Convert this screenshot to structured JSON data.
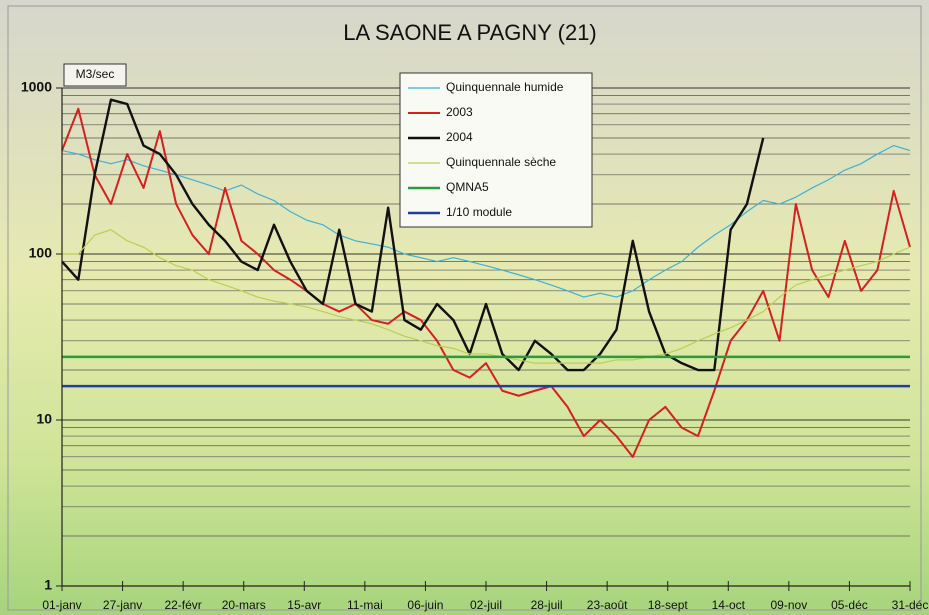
{
  "chart_data": {
    "type": "line",
    "title": "LA SAONE A PAGNY (21)",
    "y_label": "M3/sec",
    "log_y": true,
    "grid": true,
    "legend": "top-center",
    "x": [
      0,
      7,
      14,
      21,
      28,
      35,
      42,
      49,
      56,
      63,
      70,
      77,
      84,
      91,
      98,
      105,
      112,
      119,
      126,
      133,
      140,
      147,
      154,
      161,
      168,
      175,
      182,
      189,
      196,
      203,
      210,
      217,
      224,
      231,
      238,
      245,
      252,
      259,
      266,
      273,
      280,
      287,
      294,
      301,
      308,
      315,
      322,
      329,
      336,
      343,
      350,
      357,
      364
    ],
    "xlim": [
      0,
      364
    ],
    "xticks": [
      {
        "value": 0,
        "label": "01-janv"
      },
      {
        "value": 26,
        "label": "27-janv"
      },
      {
        "value": 52,
        "label": "22-févr"
      },
      {
        "value": 78,
        "label": "20-mars"
      },
      {
        "value": 104,
        "label": "15-avr"
      },
      {
        "value": 130,
        "label": "11-mai"
      },
      {
        "value": 156,
        "label": "06-juin"
      },
      {
        "value": 182,
        "label": "02-juil"
      },
      {
        "value": 208,
        "label": "28-juil"
      },
      {
        "value": 234,
        "label": "23-août"
      },
      {
        "value": 260,
        "label": "18-sept"
      },
      {
        "value": 286,
        "label": "14-oct"
      },
      {
        "value": 312,
        "label": "09-nov"
      },
      {
        "value": 338,
        "label": "05-déc"
      },
      {
        "value": 364,
        "label": "31-déc"
      }
    ],
    "ylim": [
      1,
      1000
    ],
    "yticks": [
      1,
      10,
      100,
      1000
    ],
    "y_minor_ticks": [
      2,
      3,
      4,
      5,
      6,
      7,
      8,
      9,
      20,
      30,
      40,
      50,
      60,
      70,
      80,
      90,
      200,
      300,
      400,
      500,
      600,
      700,
      800,
      900
    ],
    "series": [
      {
        "name": "Quinquennale humide",
        "color": "#3fb0d8",
        "width": 1.2,
        "values": [
          420,
          400,
          370,
          350,
          370,
          340,
          320,
          300,
          280,
          260,
          240,
          260,
          230,
          210,
          180,
          160,
          150,
          130,
          120,
          115,
          110,
          100,
          95,
          90,
          95,
          90,
          85,
          80,
          75,
          70,
          65,
          60,
          55,
          58,
          55,
          60,
          70,
          80,
          90,
          110,
          130,
          150,
          180,
          210,
          200,
          220,
          250,
          280,
          320,
          350,
          400,
          450,
          420
        ]
      },
      {
        "name": "2003",
        "color": "#d42020",
        "width": 2,
        "values": [
          420,
          750,
          300,
          200,
          400,
          250,
          550,
          200,
          130,
          100,
          250,
          120,
          100,
          80,
          70,
          60,
          50,
          45,
          50,
          40,
          38,
          45,
          40,
          30,
          20,
          18,
          22,
          15,
          14,
          15,
          16,
          12,
          8,
          10,
          8,
          6,
          10,
          12,
          9,
          8,
          15,
          30,
          40,
          60,
          30,
          200,
          80,
          55,
          120,
          60,
          80,
          240,
          110
        ]
      },
      {
        "name": "2004",
        "color": "#111111",
        "width": 2.4,
        "values": [
          90,
          70,
          300,
          850,
          800,
          450,
          400,
          300,
          200,
          150,
          120,
          90,
          80,
          150,
          90,
          60,
          50,
          140,
          50,
          45,
          190,
          40,
          35,
          50,
          40,
          25,
          50,
          25,
          20,
          30,
          25,
          20,
          20,
          25,
          35,
          120,
          45,
          25,
          22,
          20,
          20,
          140,
          200,
          500,
          null,
          null,
          null,
          null,
          null,
          null,
          null,
          null,
          null
        ]
      },
      {
        "name": "Quinquennale sèche",
        "color": "#b8d050",
        "width": 1.2,
        "values": [
          100,
          100,
          130,
          140,
          120,
          110,
          95,
          85,
          80,
          70,
          65,
          60,
          55,
          52,
          50,
          48,
          45,
          42,
          40,
          38,
          35,
          32,
          30,
          28,
          27,
          25,
          25,
          24,
          23,
          22,
          22,
          22,
          22,
          22,
          23,
          23,
          24,
          25,
          27,
          30,
          33,
          36,
          40,
          45,
          55,
          65,
          70,
          75,
          80,
          85,
          90,
          100,
          110
        ]
      },
      {
        "name": "QMNA5",
        "color": "#2a9a3a",
        "width": 2.4,
        "value": 24
      },
      {
        "name": "1/10 module",
        "color": "#1f3fa0",
        "width": 2.4,
        "value": 16
      }
    ]
  }
}
